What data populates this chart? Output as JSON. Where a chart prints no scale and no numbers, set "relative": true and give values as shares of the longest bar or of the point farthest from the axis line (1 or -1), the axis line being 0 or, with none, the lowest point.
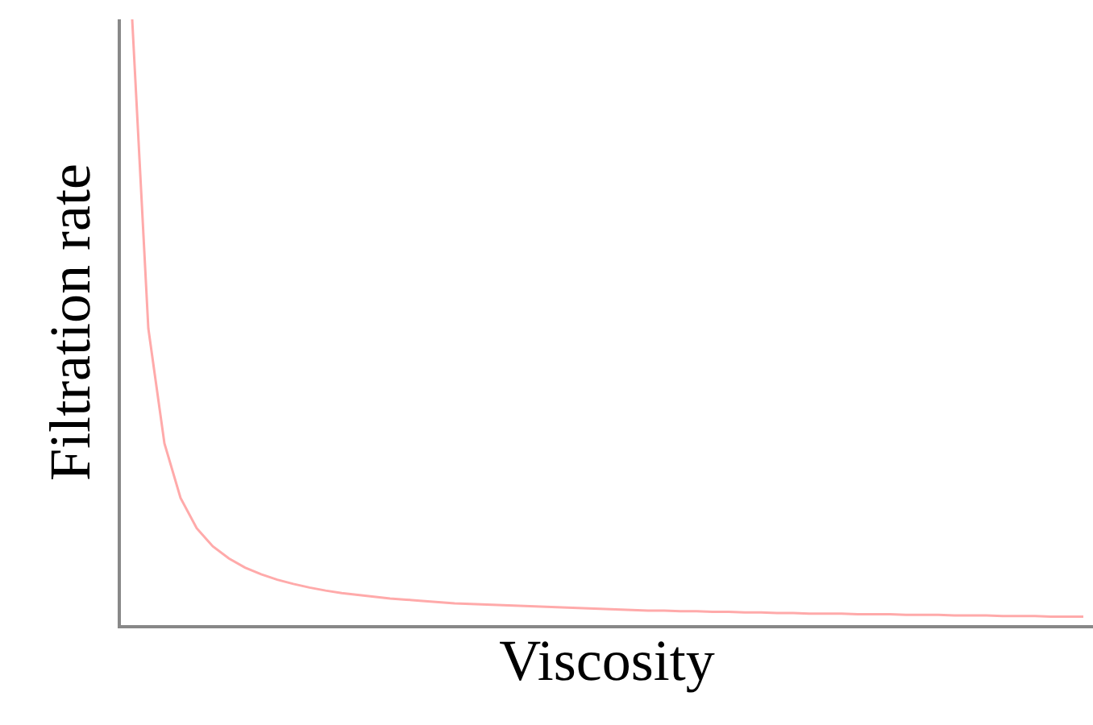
{
  "chart_data": {
    "type": "line",
    "relative": true,
    "xlabel": "Viscosity",
    "ylabel": "Filtration rate",
    "categories": [
      null,
      null,
      null,
      null,
      null,
      null,
      null,
      null,
      null,
      null,
      null,
      null,
      null,
      null,
      null,
      null,
      null,
      null,
      null,
      null,
      null,
      null,
      null,
      null,
      null,
      null,
      null,
      null,
      null,
      null,
      null,
      null,
      null,
      null,
      null,
      null,
      null,
      null,
      null,
      null,
      null,
      null,
      null,
      null,
      null,
      null,
      null,
      null,
      null,
      null,
      null,
      null,
      null,
      null,
      null,
      null,
      null,
      null,
      null,
      null
    ],
    "series": [
      {
        "color": "#ffaaaa",
        "values": [
          1.0,
          0.49,
          0.3,
          0.21,
          0.16,
          0.13,
          0.11,
          0.095,
          0.084,
          0.075,
          0.068,
          0.062,
          0.057,
          0.053,
          0.05,
          0.047,
          0.044,
          0.042,
          0.04,
          0.038,
          0.036,
          0.035,
          0.034,
          0.033,
          0.032,
          0.031,
          0.03,
          0.029,
          0.028,
          0.027,
          0.026,
          0.025,
          0.024,
          0.024,
          0.023,
          0.023,
          0.022,
          0.022,
          0.021,
          0.021,
          0.02,
          0.02,
          0.019,
          0.019,
          0.019,
          0.018,
          0.018,
          0.018,
          0.017,
          0.017,
          0.017,
          0.016,
          0.016,
          0.016,
          0.015,
          0.015,
          0.015,
          0.014,
          0.014,
          0.014
        ]
      }
    ],
    "tick_labels": false,
    "marker": "none",
    "line_style": "solid"
  }
}
